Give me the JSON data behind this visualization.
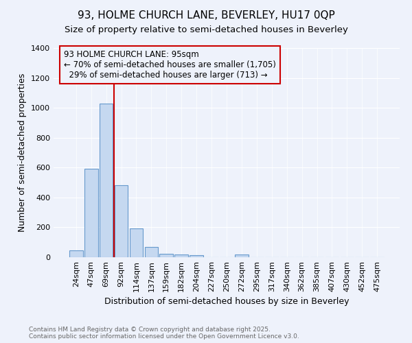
{
  "title1": "93, HOLME CHURCH LANE, BEVERLEY, HU17 0QP",
  "title2": "Size of property relative to semi-detached houses in Beverley",
  "xlabel": "Distribution of semi-detached houses by size in Beverley",
  "ylabel": "Number of semi-detached properties",
  "footnote1": "Contains HM Land Registry data © Crown copyright and database right 2025.",
  "footnote2": "Contains public sector information licensed under the Open Government Licence v3.0.",
  "bar_labels": [
    "24sqm",
    "47sqm",
    "69sqm",
    "92sqm",
    "114sqm",
    "137sqm",
    "159sqm",
    "182sqm",
    "204sqm",
    "227sqm",
    "250sqm",
    "272sqm",
    "295sqm",
    "317sqm",
    "340sqm",
    "362sqm",
    "385sqm",
    "407sqm",
    "430sqm",
    "452sqm",
    "475sqm"
  ],
  "bar_values": [
    45,
    590,
    1030,
    480,
    195,
    70,
    22,
    18,
    15,
    0,
    0,
    20,
    0,
    0,
    0,
    0,
    0,
    0,
    0,
    0,
    0
  ],
  "bar_color": "#c5d8f0",
  "bar_edge_color": "#6699cc",
  "property_label": "93 HOLME CHURCH LANE: 95sqm",
  "pct_smaller": 70,
  "pct_larger": 29,
  "n_smaller": 1705,
  "n_larger": 713,
  "vline_x": 2.5,
  "ylim": [
    0,
    1400
  ],
  "yticks": [
    0,
    200,
    400,
    600,
    800,
    1000,
    1200,
    1400
  ],
  "bg_color": "#eef2fb",
  "grid_color": "#ffffff",
  "annotation_box_color": "#cc0000",
  "vline_color": "#cc0000",
  "title_fontsize": 11,
  "subtitle_fontsize": 9.5,
  "tick_fontsize": 8,
  "ylabel_fontsize": 9,
  "xlabel_fontsize": 9,
  "ann_fontsize": 8.5
}
